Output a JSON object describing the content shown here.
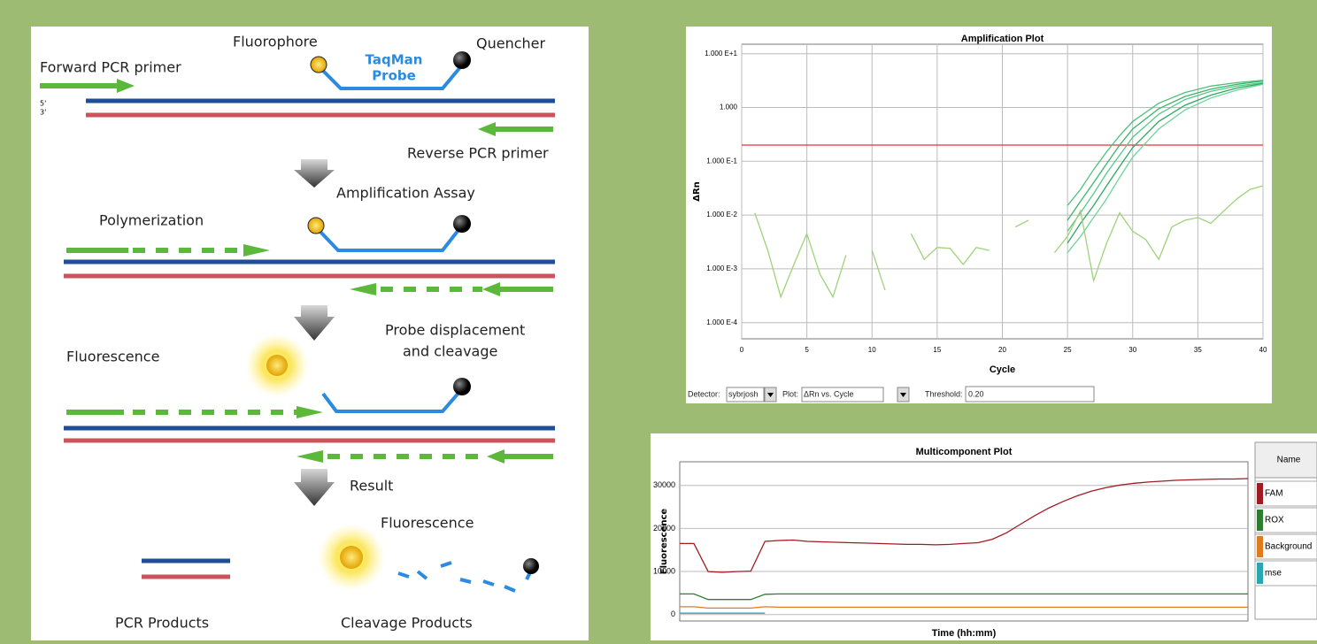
{
  "diagram": {
    "labels": {
      "forward_primer": "Forward PCR primer",
      "fluorophore": "Fluorophore",
      "probe_line1": "TaqMan",
      "probe_line2": "Probe",
      "quencher": "Quencher",
      "five_prime": "5'",
      "three_prime": "3'",
      "reverse_primer": "Reverse PCR primer",
      "amplification_assay": "Amplification Assay",
      "polymerization": "Polymerization",
      "probe_displacement_line1": "Probe displacement",
      "probe_displacement_line2": "and cleavage",
      "fluorescence_1": "Fluorescence",
      "result": "Result",
      "fluorescence_2": "Fluorescence",
      "pcr_products": "PCR Products",
      "cleavage_products": "Cleavage Products"
    }
  },
  "controls": {
    "detector_label": "Detector:",
    "detector": "sybrjosh",
    "plot_label": "Plot:",
    "plot": "ΔRn vs. Cycle",
    "threshold_label": "Threshold:",
    "threshold": "0.20"
  },
  "chart_data": [
    {
      "type": "line",
      "title": "Amplification Plot",
      "x_label": "Cycle",
      "y_label": "ΔRn",
      "log_y": true,
      "grid": true,
      "xlim": [
        0,
        40
      ],
      "xticks": [
        0,
        5,
        10,
        15,
        20,
        25,
        30,
        35,
        40
      ],
      "ylim": [
        5e-05,
        15
      ],
      "yticks": [
        {
          "value": 10,
          "label": "1.000 E+1"
        },
        {
          "value": 1,
          "label": "1.000"
        },
        {
          "value": 0.1,
          "label": "1.000 E-1"
        },
        {
          "value": 0.01,
          "label": "1.000 E-2"
        },
        {
          "value": 0.001,
          "label": "1.000 E-3"
        },
        {
          "value": 0.0001,
          "label": "1.000 E-4"
        }
      ],
      "threshold": 0.2,
      "threshold_color": "#e0303a",
      "series": [
        {
          "color": "#4fc07a",
          "x": [
            25,
            26,
            27,
            28,
            29,
            30,
            32,
            34,
            36,
            38,
            40
          ],
          "values": [
            0.015,
            0.03,
            0.07,
            0.15,
            0.3,
            0.55,
            1.2,
            1.9,
            2.5,
            2.9,
            3.2
          ]
        },
        {
          "color": "#3bb56a",
          "x": [
            25,
            26,
            27,
            28,
            29,
            30,
            32,
            34,
            36,
            38,
            40
          ],
          "values": [
            0.008,
            0.018,
            0.04,
            0.09,
            0.2,
            0.4,
            0.95,
            1.6,
            2.2,
            2.7,
            3.1
          ]
        },
        {
          "color": "#56c98a",
          "x": [
            25,
            26,
            27,
            28,
            29,
            30,
            32,
            34,
            36,
            38,
            40
          ],
          "values": [
            0.005,
            0.011,
            0.025,
            0.06,
            0.13,
            0.28,
            0.75,
            1.4,
            2.0,
            2.5,
            2.9
          ]
        },
        {
          "color": "#2fa860",
          "x": [
            25,
            26,
            27,
            28,
            29,
            30,
            32,
            34,
            36,
            38,
            40
          ],
          "values": [
            0.003,
            0.007,
            0.015,
            0.035,
            0.08,
            0.18,
            0.55,
            1.1,
            1.7,
            2.3,
            2.8
          ]
        },
        {
          "color": "#6fd39a",
          "x": [
            25,
            26,
            27,
            28,
            29,
            30,
            32,
            34,
            36,
            38,
            40
          ],
          "values": [
            0.002,
            0.004,
            0.009,
            0.02,
            0.05,
            0.12,
            0.4,
            0.9,
            1.5,
            2.1,
            2.7
          ]
        },
        {
          "color": "#9fd27a",
          "x": [
            1,
            2,
            3,
            4,
            5,
            6,
            7,
            8,
            9,
            10,
            11,
            12,
            13,
            14,
            15,
            16,
            17,
            18,
            19,
            20,
            21,
            22,
            23,
            24,
            25,
            26,
            27,
            28,
            29,
            30,
            31,
            32,
            33,
            34,
            35,
            36,
            37,
            38,
            39,
            40
          ],
          "values": [
            0.011,
            0.0022,
            0.0003,
            0.0012,
            0.0045,
            0.0008,
            0.0003,
            0.0018,
            null,
            0.0022,
            0.0004,
            null,
            0.0045,
            0.0015,
            0.0025,
            0.0024,
            0.0012,
            0.0025,
            0.0022,
            null,
            0.006,
            0.008,
            null,
            0.002,
            0.004,
            0.012,
            0.0006,
            0.003,
            0.011,
            0.005,
            0.0035,
            0.0015,
            0.006,
            0.008,
            0.009,
            0.007,
            0.012,
            0.02,
            0.03,
            0.035
          ]
        }
      ]
    },
    {
      "type": "line",
      "title": "Multicomponent Plot",
      "x_label": "Time (hh:mm)",
      "y_label": "Fluorescence",
      "grid": true,
      "legend_title": "Name",
      "xlim": [
        0,
        40
      ],
      "ylim": [
        -1500,
        35500
      ],
      "yticks": [
        0,
        10000,
        20000,
        30000
      ],
      "x": [
        0,
        1,
        2,
        3,
        4,
        5,
        6,
        7,
        8,
        9,
        10,
        11,
        12,
        13,
        14,
        15,
        16,
        17,
        18,
        19,
        20,
        21,
        22,
        23,
        24,
        25,
        26,
        27,
        28,
        29,
        30,
        31,
        32,
        33,
        34,
        35,
        36,
        37,
        38,
        39,
        40
      ],
      "series": [
        {
          "name": "FAM",
          "color": "#a01c24",
          "values": [
            16500,
            16500,
            10000,
            9800,
            10000,
            10100,
            17000,
            17200,
            17300,
            17000,
            16900,
            16800,
            16700,
            16600,
            16500,
            16400,
            16300,
            16300,
            16200,
            16300,
            16500,
            16700,
            17500,
            19000,
            21000,
            23000,
            24800,
            26300,
            27600,
            28700,
            29500,
            30100,
            30500,
            30800,
            31000,
            31200,
            31300,
            31400,
            31500,
            31500,
            31600
          ]
        },
        {
          "name": "ROX",
          "color": "#2e7d32",
          "values": [
            4800,
            4800,
            3500,
            3500,
            3500,
            3500,
            4700,
            4800,
            4800,
            4800,
            4800,
            4800,
            4800,
            4800,
            4800,
            4800,
            4800,
            4800,
            4800,
            4800,
            4800,
            4800,
            4800,
            4800,
            4800,
            4800,
            4800,
            4800,
            4800,
            4800,
            4800,
            4800,
            4800,
            4800,
            4800,
            4800,
            4800,
            4800,
            4800,
            4800,
            4800
          ]
        },
        {
          "name": "Background",
          "color": "#e07b20",
          "values": [
            1800,
            1800,
            1500,
            1500,
            1500,
            1500,
            1800,
            1700,
            1700,
            1700,
            1700,
            1700,
            1700,
            1700,
            1700,
            1700,
            1700,
            1700,
            1700,
            1700,
            1700,
            1700,
            1700,
            1700,
            1700,
            1700,
            1700,
            1700,
            1700,
            1700,
            1700,
            1700,
            1700,
            1700,
            1700,
            1700,
            1700,
            1700,
            1700,
            1700,
            1700
          ]
        },
        {
          "name": "mse",
          "color": "#2aa6b0",
          "values": [
            300,
            300,
            300,
            300,
            300,
            300,
            300,
            null,
            null,
            null,
            null,
            null,
            null,
            null,
            null,
            null,
            null,
            null,
            null,
            null,
            null,
            null,
            null,
            null,
            null,
            null,
            null,
            null,
            null,
            null,
            null,
            null,
            null,
            null,
            null,
            null,
            null,
            null,
            null,
            null,
            null
          ]
        }
      ]
    }
  ]
}
